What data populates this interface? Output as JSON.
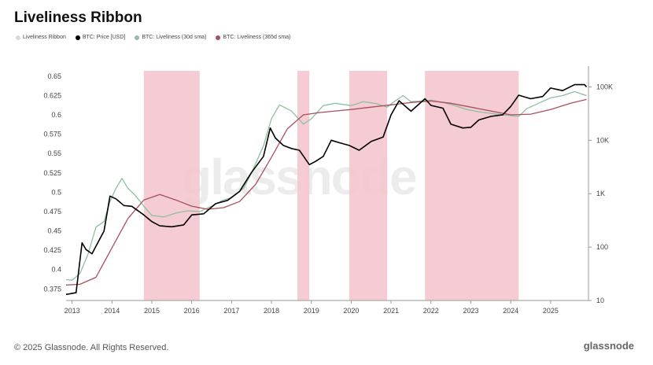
{
  "header": {
    "title": "Liveliness Ribbon"
  },
  "legend": [
    {
      "label": "Liveliness Ribbon",
      "color": "#d9d9d9"
    },
    {
      "label": "BTC: Price [USD]",
      "color": "#000000"
    },
    {
      "label": "BTC: Liveliness (30d sma)",
      "color": "#8fbfa0"
    },
    {
      "label": "BTC: Liveliness (365d sma)",
      "color": "#a8505e"
    }
  ],
  "watermark": "glassnode",
  "footer": {
    "copyright": "© 2025 Glassnode. All Rights Reserved.",
    "brand": "glassnode"
  },
  "chart_data": {
    "type": "line",
    "x_ticks": [
      "2013",
      "2014",
      "2015",
      "2016",
      "2017",
      "2018",
      "2019",
      "2020",
      "2021",
      "2022",
      "2023",
      "2024",
      "2025"
    ],
    "y_left_ticks": [
      0.375,
      0.4,
      0.425,
      0.45,
      0.475,
      0.5,
      0.525,
      0.55,
      0.575,
      0.6,
      0.625,
      0.65
    ],
    "y_left_tick_labels": [
      "0.375",
      "0.4",
      "0.425",
      "0.45",
      "0.475",
      "0.5",
      "0.525",
      "0.55",
      "0.575",
      "0.6",
      "0.625",
      "0.65"
    ],
    "y_right_ticks": [
      10,
      100,
      1000,
      10000,
      100000
    ],
    "y_right_tick_labels": [
      "10",
      "100",
      "1K",
      "10K",
      "100K"
    ],
    "y_left_range": [
      0.36,
      0.657
    ],
    "y_right_range": [
      10,
      200000
    ],
    "y_right_scale": "log",
    "x_range": [
      2012.85,
      2025.95
    ],
    "highlight_periods": [
      {
        "start": 2014.8,
        "end": 2016.2
      },
      {
        "start": 2018.65,
        "end": 2018.95
      },
      {
        "start": 2019.95,
        "end": 2020.9
      },
      {
        "start": 2021.85,
        "end": 2024.2
      }
    ],
    "highlight_color": "#f4c7ce",
    "series": [
      {
        "key": "liveliness_30d",
        "color": "#8fbfa0",
        "axis": "left",
        "x": [
          2012.85,
          2013.0,
          2013.2,
          2013.4,
          2013.6,
          2013.8,
          2013.95,
          2014.1,
          2014.25,
          2014.4,
          2014.6,
          2014.8,
          2015.0,
          2015.3,
          2015.6,
          2015.9,
          2016.2,
          2016.5,
          2016.8,
          2017.0,
          2017.3,
          2017.5,
          2017.8,
          2018.0,
          2018.2,
          2018.5,
          2018.8,
          2019.0,
          2019.3,
          2019.6,
          2020.0,
          2020.3,
          2020.6,
          2020.9,
          2021.1,
          2021.3,
          2021.5,
          2021.8,
          2022.0,
          2022.3,
          2022.6,
          2022.9,
          2023.2,
          2023.5,
          2023.8,
          2024.0,
          2024.2,
          2024.4,
          2024.7,
          2025.0,
          2025.3,
          2025.6,
          2025.9
        ],
        "values": [
          0.387,
          0.386,
          0.395,
          0.42,
          0.455,
          0.462,
          0.488,
          0.505,
          0.518,
          0.505,
          0.495,
          0.482,
          0.47,
          0.468,
          0.473,
          0.476,
          0.475,
          0.482,
          0.49,
          0.493,
          0.505,
          0.525,
          0.56,
          0.595,
          0.613,
          0.605,
          0.588,
          0.595,
          0.612,
          0.615,
          0.612,
          0.617,
          0.615,
          0.61,
          0.618,
          0.625,
          0.617,
          0.618,
          0.619,
          0.616,
          0.612,
          0.607,
          0.604,
          0.602,
          0.6,
          0.599,
          0.598,
          0.608,
          0.615,
          0.622,
          0.625,
          0.63,
          0.625
        ]
      },
      {
        "key": "liveliness_365d",
        "color": "#a8505e",
        "axis": "left",
        "x": [
          2012.85,
          2013.2,
          2013.6,
          2014.0,
          2014.4,
          2014.8,
          2015.2,
          2015.6,
          2016.0,
          2016.4,
          2016.8,
          2017.2,
          2017.6,
          2018.0,
          2018.4,
          2018.8,
          2019.2,
          2019.6,
          2020.0,
          2020.5,
          2021.0,
          2021.5,
          2022.0,
          2022.5,
          2023.0,
          2023.5,
          2024.0,
          2024.5,
          2025.0,
          2025.5,
          2025.9
        ],
        "values": [
          0.38,
          0.381,
          0.39,
          0.428,
          0.466,
          0.49,
          0.497,
          0.49,
          0.482,
          0.478,
          0.48,
          0.488,
          0.51,
          0.545,
          0.582,
          0.6,
          0.603,
          0.605,
          0.607,
          0.61,
          0.613,
          0.616,
          0.618,
          0.615,
          0.61,
          0.605,
          0.6,
          0.601,
          0.607,
          0.615,
          0.62
        ]
      },
      {
        "key": "btc_price",
        "color": "#000000",
        "axis": "right",
        "x": [
          2012.85,
          2013.1,
          2013.25,
          2013.35,
          2013.5,
          2013.8,
          2013.95,
          2014.1,
          2014.3,
          2014.5,
          2014.8,
          2015.0,
          2015.2,
          2015.5,
          2015.8,
          2016.0,
          2016.3,
          2016.6,
          2016.9,
          2017.2,
          2017.5,
          2017.8,
          2017.97,
          2018.1,
          2018.3,
          2018.5,
          2018.7,
          2018.95,
          2019.1,
          2019.3,
          2019.5,
          2019.7,
          2019.95,
          2020.2,
          2020.5,
          2020.8,
          2021.0,
          2021.2,
          2021.5,
          2021.85,
          2022.0,
          2022.3,
          2022.5,
          2022.8,
          2023.0,
          2023.2,
          2023.5,
          2023.8,
          2024.0,
          2024.2,
          2024.5,
          2024.8,
          2025.0,
          2025.3,
          2025.6,
          2025.85,
          2025.9
        ],
        "values": [
          13,
          14,
          120,
          90,
          75,
          200,
          900,
          800,
          600,
          580,
          400,
          300,
          250,
          240,
          260,
          400,
          420,
          650,
          750,
          1100,
          2500,
          5000,
          17000,
          11000,
          8000,
          7000,
          6500,
          3500,
          4000,
          5000,
          10000,
          9000,
          8000,
          6500,
          9500,
          11500,
          30000,
          55000,
          35000,
          60000,
          45000,
          40000,
          20000,
          17000,
          17500,
          24000,
          28000,
          30000,
          43000,
          70000,
          60000,
          66000,
          95000,
          85000,
          110000,
          110000,
          100000
        ]
      }
    ]
  }
}
